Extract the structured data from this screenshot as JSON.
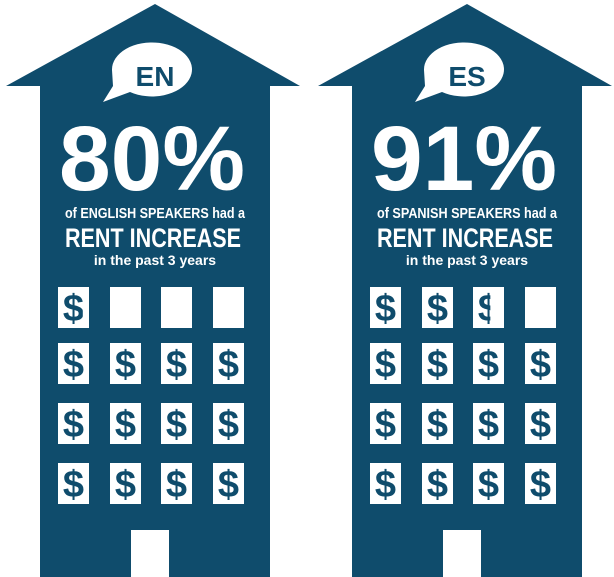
{
  "panels": [
    {
      "language": "EN",
      "value": 80,
      "value_label": "80%",
      "line1": "of ENGLISH SPEAKERS had a",
      "line2": "RENT INCREASE",
      "line3": "in the past 3 years",
      "symbol": "$"
    },
    {
      "language": "ES",
      "value": 91,
      "value_label": "91%",
      "line1": "of SPANISH SPEAKERS had a",
      "line2": "RENT INCREASE",
      "line3": "in the past 3 years",
      "symbol": "$"
    }
  ]
}
